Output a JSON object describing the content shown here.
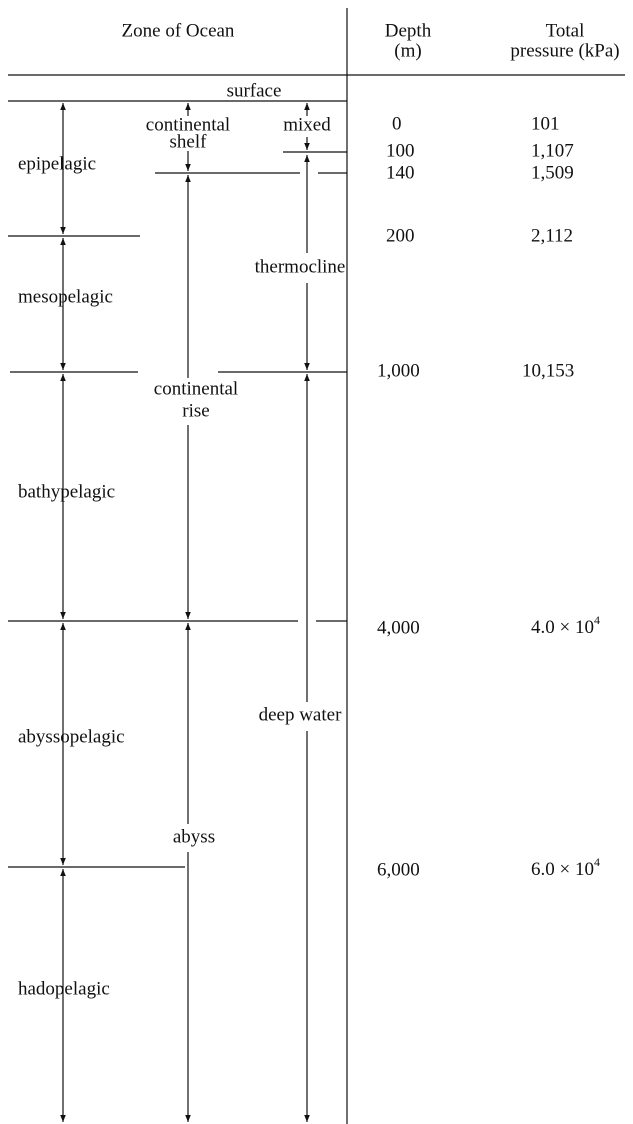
{
  "header": {
    "zone": "Zone of Ocean",
    "depth": [
      "Depth",
      "(m)"
    ],
    "pressure": [
      "Total",
      "pressure (kPa)"
    ]
  },
  "zones": [
    "epipelagic",
    "mesopelagic",
    "bathypelagic",
    "abyssopelagic",
    "hadopelagic"
  ],
  "shelf_zones": [
    [
      "continental",
      "shelf"
    ],
    [
      "continental",
      "rise"
    ],
    [
      "abyss"
    ]
  ],
  "water_layers": [
    "surface",
    "mixed",
    "thermocline",
    "deep water"
  ],
  "rows": [
    {
      "depth": "0",
      "pressure": "101"
    },
    {
      "depth": "100",
      "pressure": "1,107"
    },
    {
      "depth": "140",
      "pressure": "1,509"
    },
    {
      "depth": "200",
      "pressure": "2,112"
    },
    {
      "depth": "1,000",
      "pressure": "10,153"
    },
    {
      "depth": "4,000",
      "pressure": {
        "base": "4.0 × 10",
        "exponent": "4"
      }
    },
    {
      "depth": "6,000",
      "pressure": {
        "base": "6.0 × 10",
        "exponent": "4"
      }
    }
  ]
}
